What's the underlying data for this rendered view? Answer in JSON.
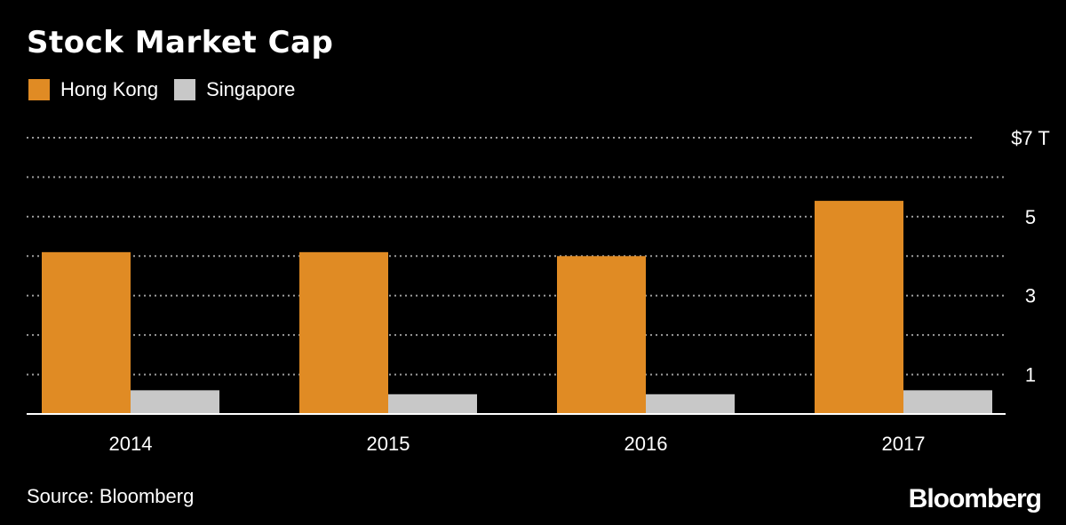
{
  "title": "Stock Market Cap",
  "source": "Source: Bloomberg",
  "logo": "Bloomberg",
  "colors": {
    "hong_kong": "#E08B24",
    "singapore": "#C8C8C8",
    "grid": "#9a9a9a"
  },
  "chart_data": {
    "type": "bar",
    "title": "Stock Market Cap",
    "categories": [
      "2014",
      "2015",
      "2016",
      "2017"
    ],
    "series": [
      {
        "name": "Hong Kong",
        "values": [
          4.1,
          4.1,
          4.0,
          5.4
        ]
      },
      {
        "name": "Singapore",
        "values": [
          0.6,
          0.5,
          0.5,
          0.6
        ]
      }
    ],
    "ylim": [
      0,
      7
    ],
    "yticks": [
      1,
      2,
      3,
      4,
      5,
      6,
      7
    ],
    "ytick_labels": {
      "1": "1",
      "3": "3",
      "5": "5",
      "7": "$7 T"
    },
    "grid": true,
    "legend_position": "top-left"
  }
}
